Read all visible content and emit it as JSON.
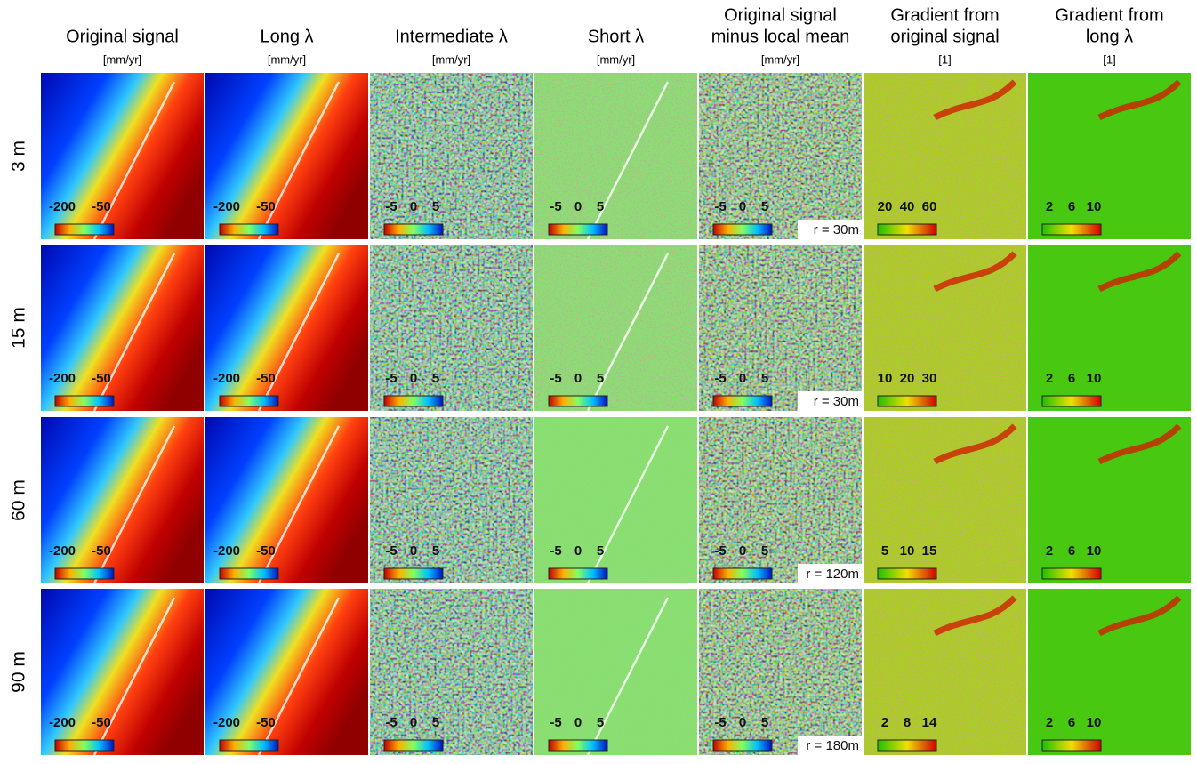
{
  "columns": [
    {
      "title_lines": [
        "Original signal"
      ],
      "unit": "[mm/yr]"
    },
    {
      "title_lines": [
        "Long λ"
      ],
      "unit": "[mm/yr]"
    },
    {
      "title_lines": [
        "Intermediate λ"
      ],
      "unit": "[mm/yr]"
    },
    {
      "title_lines": [
        "Short λ"
      ],
      "unit": "[mm/yr]"
    },
    {
      "title_lines": [
        "Original signal",
        "minus local mean"
      ],
      "unit": "[mm/yr]"
    },
    {
      "title_lines": [
        "Gradient from",
        "original signal"
      ],
      "unit": "[1]"
    },
    {
      "title_lines": [
        "Gradient from",
        "long λ"
      ],
      "unit": "[1]"
    }
  ],
  "rows": [
    {
      "label": "3 m",
      "radius": "r = 30m",
      "colorbars": [
        [
          "-200",
          "-50"
        ],
        [
          "-200",
          "-50"
        ],
        [
          "-5",
          "0",
          "5"
        ],
        [
          "-5",
          "0",
          "5"
        ],
        [
          "-5",
          "0",
          "5"
        ],
        [
          "20",
          "40",
          "60"
        ],
        [
          "2",
          "6",
          "10"
        ]
      ]
    },
    {
      "label": "15 m",
      "radius": "r = 30m",
      "colorbars": [
        [
          "-200",
          "-50"
        ],
        [
          "-200",
          "-50"
        ],
        [
          "-5",
          "0",
          "5"
        ],
        [
          "-5",
          "0",
          "5"
        ],
        [
          "-5",
          "0",
          "5"
        ],
        [
          "10",
          "20",
          "30"
        ],
        [
          "2",
          "6",
          "10"
        ]
      ]
    },
    {
      "label": "60 m",
      "radius": "r = 120m",
      "colorbars": [
        [
          "-200",
          "-50"
        ],
        [
          "-200",
          "-50"
        ],
        [
          "-5",
          "0",
          "5"
        ],
        [
          "-5",
          "0",
          "5"
        ],
        [
          "-5",
          "0",
          "5"
        ],
        [
          "5",
          "10",
          "15"
        ],
        [
          "2",
          "6",
          "10"
        ]
      ]
    },
    {
      "label": "90 m",
      "radius": "r = 180m",
      "colorbars": [
        [
          "-200",
          "-50"
        ],
        [
          "-200",
          "-50"
        ],
        [
          "-5",
          "0",
          "5"
        ],
        [
          "-5",
          "0",
          "5"
        ],
        [
          "-5",
          "0",
          "5"
        ],
        [
          "2",
          "8",
          "14"
        ],
        [
          "2",
          "6",
          "10"
        ]
      ]
    }
  ]
}
